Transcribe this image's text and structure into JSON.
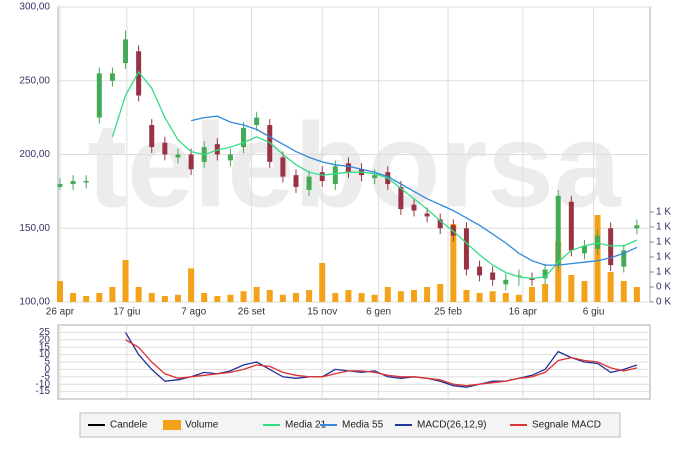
{
  "chart_data": [
    {
      "type": "candlestick",
      "watermark": "teleborsa",
      "x": [
        0,
        10,
        20,
        30,
        40,
        50,
        60,
        70,
        80,
        90,
        100,
        110,
        120,
        130,
        140,
        150,
        160,
        170,
        180,
        190,
        200,
        210,
        220,
        230,
        240,
        250,
        260,
        270,
        280,
        290,
        300,
        310,
        320,
        330,
        340,
        350,
        360,
        370,
        380,
        390,
        400,
        410,
        420,
        430,
        440
      ],
      "xlim": [
        -1.5,
        450
      ],
      "xticks": [
        {
          "value": 0,
          "label": "26 apr"
        },
        {
          "value": 51,
          "label": "17 giu"
        },
        {
          "value": 102,
          "label": "7 ago"
        },
        {
          "value": 146,
          "label": "26 set"
        },
        {
          "value": 200,
          "label": "15 nov"
        },
        {
          "value": 243,
          "label": "6 gen"
        },
        {
          "value": 296,
          "label": "25 feb"
        },
        {
          "value": 353,
          "label": "16 apr"
        },
        {
          "value": 407,
          "label": "6 giu"
        }
      ],
      "ylim": [
        100,
        300
      ],
      "yticks": [
        {
          "value": 100,
          "label": "100,00"
        },
        {
          "value": 150,
          "label": "150,00"
        },
        {
          "value": 200,
          "label": "200,00"
        },
        {
          "value": 250,
          "label": "250,00"
        },
        {
          "value": 300,
          "label": "300,00"
        }
      ],
      "y2lim": [
        0,
        4917
      ],
      "y2ticks": [
        {
          "value": 0,
          "label": "0 K"
        },
        {
          "value": 250,
          "label": "0 K"
        },
        {
          "value": 500,
          "label": "1 K"
        },
        {
          "value": 750,
          "label": "1 K"
        },
        {
          "value": 1000,
          "label": "1 K"
        },
        {
          "value": 1250,
          "label": "1 K"
        },
        {
          "value": 1500,
          "label": "1 K"
        }
      ],
      "grid": true,
      "candles": {
        "name": "Candele",
        "color": "#000000",
        "up_color": "#44aa55",
        "down_color": "#993344",
        "open": [
          178,
          180,
          181,
          225,
          250,
          262,
          270,
          220,
          208,
          198,
          200,
          195,
          207,
          196,
          205,
          220,
          220,
          198,
          186,
          176,
          188,
          180,
          194,
          190,
          184,
          188,
          178,
          166,
          160,
          156,
          152,
          150,
          124,
          120,
          112,
          118,
          116,
          116,
          125,
          168,
          133,
          136,
          150,
          124,
          150
        ],
        "high": [
          184,
          186,
          186,
          259,
          259,
          284,
          274,
          224,
          212,
          204,
          204,
          209,
          211,
          204,
          222,
          229,
          224,
          202,
          190,
          189,
          192,
          196,
          198,
          194,
          190,
          192,
          182,
          170,
          164,
          160,
          156,
          154,
          128,
          124,
          119,
          122,
          120,
          126,
          176,
          172,
          142,
          149,
          154,
          139,
          156
        ],
        "low": [
          176,
          176,
          177,
          221,
          246,
          258,
          236,
          201,
          196,
          194,
          186,
          191,
          196,
          192,
          201,
          216,
          191,
          181,
          174,
          172,
          178,
          176,
          184,
          182,
          180,
          176,
          159,
          158,
          154,
          146,
          141,
          118,
          114,
          111,
          108,
          111,
          111,
          112,
          121,
          131,
          129,
          132,
          121,
          120,
          146
        ],
        "close": [
          180,
          182,
          182,
          255,
          255,
          278,
          240,
          205,
          200,
          200,
          190,
          205,
          200,
          200,
          218,
          225,
          195,
          185,
          178,
          185,
          182,
          192,
          188,
          186,
          186,
          180,
          163,
          162,
          158,
          150,
          145,
          122,
          118,
          115,
          115,
          118,
          115,
          122,
          172,
          135,
          138,
          145,
          125,
          135,
          152
        ]
      },
      "series": [
        {
          "name": "Volume",
          "type": "bar",
          "axis": "y2",
          "color": "#f5a21b",
          "values": [
            350,
            150,
            100,
            150,
            250,
            700,
            250,
            150,
            100,
            120,
            560,
            150,
            100,
            120,
            180,
            250,
            200,
            120,
            150,
            200,
            650,
            150,
            200,
            150,
            120,
            250,
            180,
            200,
            250,
            300,
            1300,
            200,
            150,
            180,
            150,
            120,
            250,
            300,
            1000,
            450,
            350,
            1450,
            500,
            350,
            250
          ]
        },
        {
          "name": "Media 21",
          "type": "line",
          "color": "#33dd88",
          "values": [
            null,
            null,
            null,
            null,
            212,
            240,
            256,
            245,
            225,
            210,
            202,
            200,
            203,
            205,
            208,
            212,
            208,
            200,
            193,
            188,
            186,
            187,
            188,
            188,
            187,
            184,
            177,
            170,
            163,
            155,
            148,
            140,
            132,
            125,
            120,
            117,
            116,
            117,
            127,
            135,
            138,
            140,
            138,
            138,
            142
          ]
        },
        {
          "name": "Media 55",
          "type": "line",
          "color": "#3388dd",
          "values": [
            null,
            null,
            null,
            null,
            null,
            null,
            null,
            null,
            null,
            null,
            223,
            225,
            226,
            222,
            220,
            217,
            212,
            207,
            202,
            198,
            195,
            193,
            192,
            190,
            188,
            185,
            180,
            175,
            170,
            166,
            162,
            157,
            152,
            146,
            140,
            133,
            128,
            125,
            125,
            126,
            127,
            128,
            130,
            133,
            137
          ]
        }
      ]
    },
    {
      "type": "line",
      "x": [
        0,
        10,
        20,
        30,
        40,
        50,
        60,
        70,
        80,
        90,
        100,
        110,
        120,
        130,
        140,
        150,
        160,
        170,
        180,
        190,
        200,
        210,
        220,
        230,
        240,
        250,
        260,
        270,
        280,
        290,
        300,
        310,
        320,
        330,
        340,
        350,
        360,
        370,
        380,
        390,
        400,
        410,
        420,
        430,
        440
      ],
      "xlim": [
        -1.5,
        450
      ],
      "xticks": [
        0,
        51,
        102,
        146,
        200,
        243,
        296,
        353,
        407
      ],
      "ylim": [
        -20,
        30
      ],
      "yticks": [
        25,
        20,
        15,
        10,
        5,
        0,
        -5,
        -10,
        -15
      ],
      "grid": true,
      "series": [
        {
          "name": "MACD(26,12,9)",
          "color": "#223399",
          "values": [
            null,
            null,
            null,
            null,
            null,
            25,
            10,
            0,
            -8,
            -7,
            -5,
            -2,
            -3,
            -1,
            3,
            5,
            0,
            -5,
            -6,
            -5,
            -5,
            0,
            -1,
            -2,
            -1,
            -5,
            -6,
            -5,
            -6,
            -8,
            -11,
            -12,
            -10,
            -8,
            -8,
            -6,
            -4,
            0,
            12,
            8,
            5,
            4,
            -2,
            0,
            3
          ]
        },
        {
          "name": "Segnale MACD",
          "color": "#dd3333",
          "values": [
            null,
            null,
            null,
            null,
            null,
            20,
            15,
            5,
            -3,
            -6,
            -5,
            -4,
            -3,
            -2,
            0,
            3,
            2,
            -2,
            -4,
            -5,
            -5,
            -3,
            -1,
            -1,
            -2,
            -4,
            -5,
            -5,
            -6,
            -7,
            -10,
            -11,
            -10,
            -9,
            -8,
            -6,
            -5,
            -2,
            6,
            8,
            6,
            5,
            1,
            -1,
            1
          ]
        }
      ]
    }
  ]
}
